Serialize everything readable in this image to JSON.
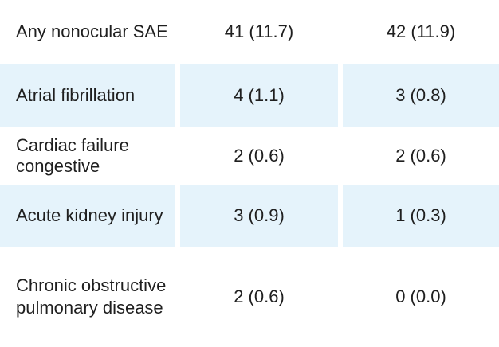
{
  "rows": [
    {
      "label": "Any nonocular SAE",
      "col1": "41 (11.7)",
      "col2": "42 (11.9)"
    },
    {
      "label": "Atrial fibrillation",
      "col1": "4 (1.1)",
      "col2": "3 (0.8)"
    },
    {
      "label": "Cardiac failure congestive",
      "col1": "2 (0.6)",
      "col2": "2 (0.6)"
    },
    {
      "label": "Acute kidney injury",
      "col1": "3 (0.9)",
      "col2": "1 (0.3)"
    },
    {
      "label": "Chronic obstructive pulmonary disease",
      "col1": "2 (0.6)",
      "col2": "0 (0.0)"
    }
  ],
  "colors": {
    "shaded_row": "#e5f3fb",
    "text": "#1f1f1f"
  }
}
